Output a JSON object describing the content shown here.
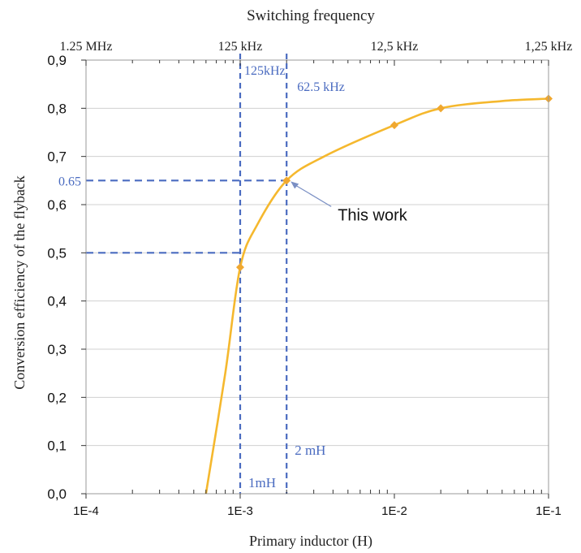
{
  "chart_data": {
    "type": "line",
    "title": "Switching frequency",
    "xlabel": "Primary inductor (H)",
    "ylabel": "Conversion efficiency of the flyback",
    "x_scale": "log",
    "xlim": [
      0.0001,
      0.1
    ],
    "ylim": [
      0,
      0.9
    ],
    "x_ticks": [
      0.0001,
      0.001,
      0.01,
      0.1
    ],
    "x_tick_labels": [
      "1E-4",
      "1E-3",
      "1E-2",
      "1E-1"
    ],
    "y_ticks": [
      0,
      0.1,
      0.2,
      0.3,
      0.4,
      0.5,
      0.6,
      0.7,
      0.8,
      0.9
    ],
    "y_tick_labels": [
      "0,0",
      "0,1",
      "0,2",
      "0,3",
      "0,4",
      "0,5",
      "0,6",
      "0,7",
      "0,8",
      "0,9"
    ],
    "top_axis_labels": [
      "1.25 MHz",
      "125 kHz",
      "12,5 kHz",
      "1,25 kHz"
    ],
    "grid": "horizontal",
    "series": [
      {
        "color": "#F5B82E",
        "marker_color": "#F0A830",
        "line_points": [
          {
            "x": 0.0006,
            "y": 0.0
          },
          {
            "x": 0.0008,
            "y": 0.25
          },
          {
            "x": 0.001,
            "y": 0.47
          },
          {
            "x": 0.0013,
            "y": 0.56
          },
          {
            "x": 0.002,
            "y": 0.65
          },
          {
            "x": 0.0035,
            "y": 0.7
          },
          {
            "x": 0.01,
            "y": 0.765
          },
          {
            "x": 0.02,
            "y": 0.8
          },
          {
            "x": 0.05,
            "y": 0.815
          },
          {
            "x": 0.1,
            "y": 0.82
          }
        ],
        "markers": [
          {
            "x": 0.001,
            "y": 0.47
          },
          {
            "x": 0.002,
            "y": 0.65
          },
          {
            "x": 0.01,
            "y": 0.765
          },
          {
            "x": 0.02,
            "y": 0.8
          },
          {
            "x": 0.1,
            "y": 0.82
          }
        ]
      }
    ],
    "reference_lines": {
      "color": "#4A6BC0",
      "vertical": [
        {
          "x": 0.001,
          "label": "1mH",
          "top_label": "125kHz"
        },
        {
          "x": 0.002,
          "label": "2 mH",
          "top_label": "62.5 kHz"
        }
      ],
      "horizontal": [
        {
          "y": 0.65,
          "x_end": 0.002,
          "label": "0.65"
        },
        {
          "y": 0.5,
          "x_end": 0.001
        }
      ]
    },
    "annotations": [
      {
        "text": "This work",
        "x": 0.002,
        "y": 0.65
      }
    ]
  }
}
